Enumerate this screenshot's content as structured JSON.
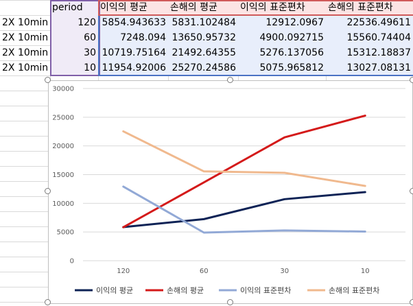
{
  "sheet": {
    "headers": {
      "period": "period",
      "c1": "이익의 평균",
      "c2": "손해의 평균",
      "c3": "이익의 표준편차",
      "c4": "손해의 표준편차"
    },
    "rows": [
      {
        "label": "2X 10min",
        "period": "120",
        "c1": "5854.943633",
        "c2": "5831.102484",
        "c3": "12912.0967",
        "c4": "22536.49611"
      },
      {
        "label": "2X 10min",
        "period": "60",
        "c1": "7248.094",
        "c2": "13650.95732",
        "c3": "4900.092715",
        "c4": "15560.74404"
      },
      {
        "label": "2X 10min",
        "period": "30",
        "c1": "10719.75164",
        "c2": "21492.64355",
        "c3": "5276.137056",
        "c4": "15312.18837"
      },
      {
        "label": "2X 10min",
        "period": "10",
        "c1": "11954.92006",
        "c2": "25270.24586",
        "c3": "5075.965812",
        "c4": "13027.08131"
      }
    ]
  },
  "chart_data": {
    "type": "line",
    "categories": [
      "120",
      "60",
      "30",
      "10"
    ],
    "ylim": [
      0,
      30000
    ],
    "yticks": [
      "0",
      "5000",
      "10000",
      "15000",
      "20000",
      "25000",
      "30000"
    ],
    "legend_position": "bottom",
    "grid": true,
    "series": [
      {
        "name": "이익의 평균",
        "color": "#0e2356",
        "values": [
          5854.943633,
          7248.094,
          10719.75164,
          11954.92006
        ]
      },
      {
        "name": "손해의 평균",
        "color": "#d41a1a",
        "values": [
          5831.102484,
          13650.95732,
          21492.64355,
          25270.24586
        ]
      },
      {
        "name": "이익의 표준편차",
        "color": "#92a9d6",
        "values": [
          12912.0967,
          4900.092715,
          5276.137056,
          5075.965812
        ]
      },
      {
        "name": "손해의 표준편차",
        "color": "#f0b98e",
        "values": [
          22536.49611,
          15560.74404,
          15312.18837,
          13027.08131
        ]
      }
    ]
  }
}
